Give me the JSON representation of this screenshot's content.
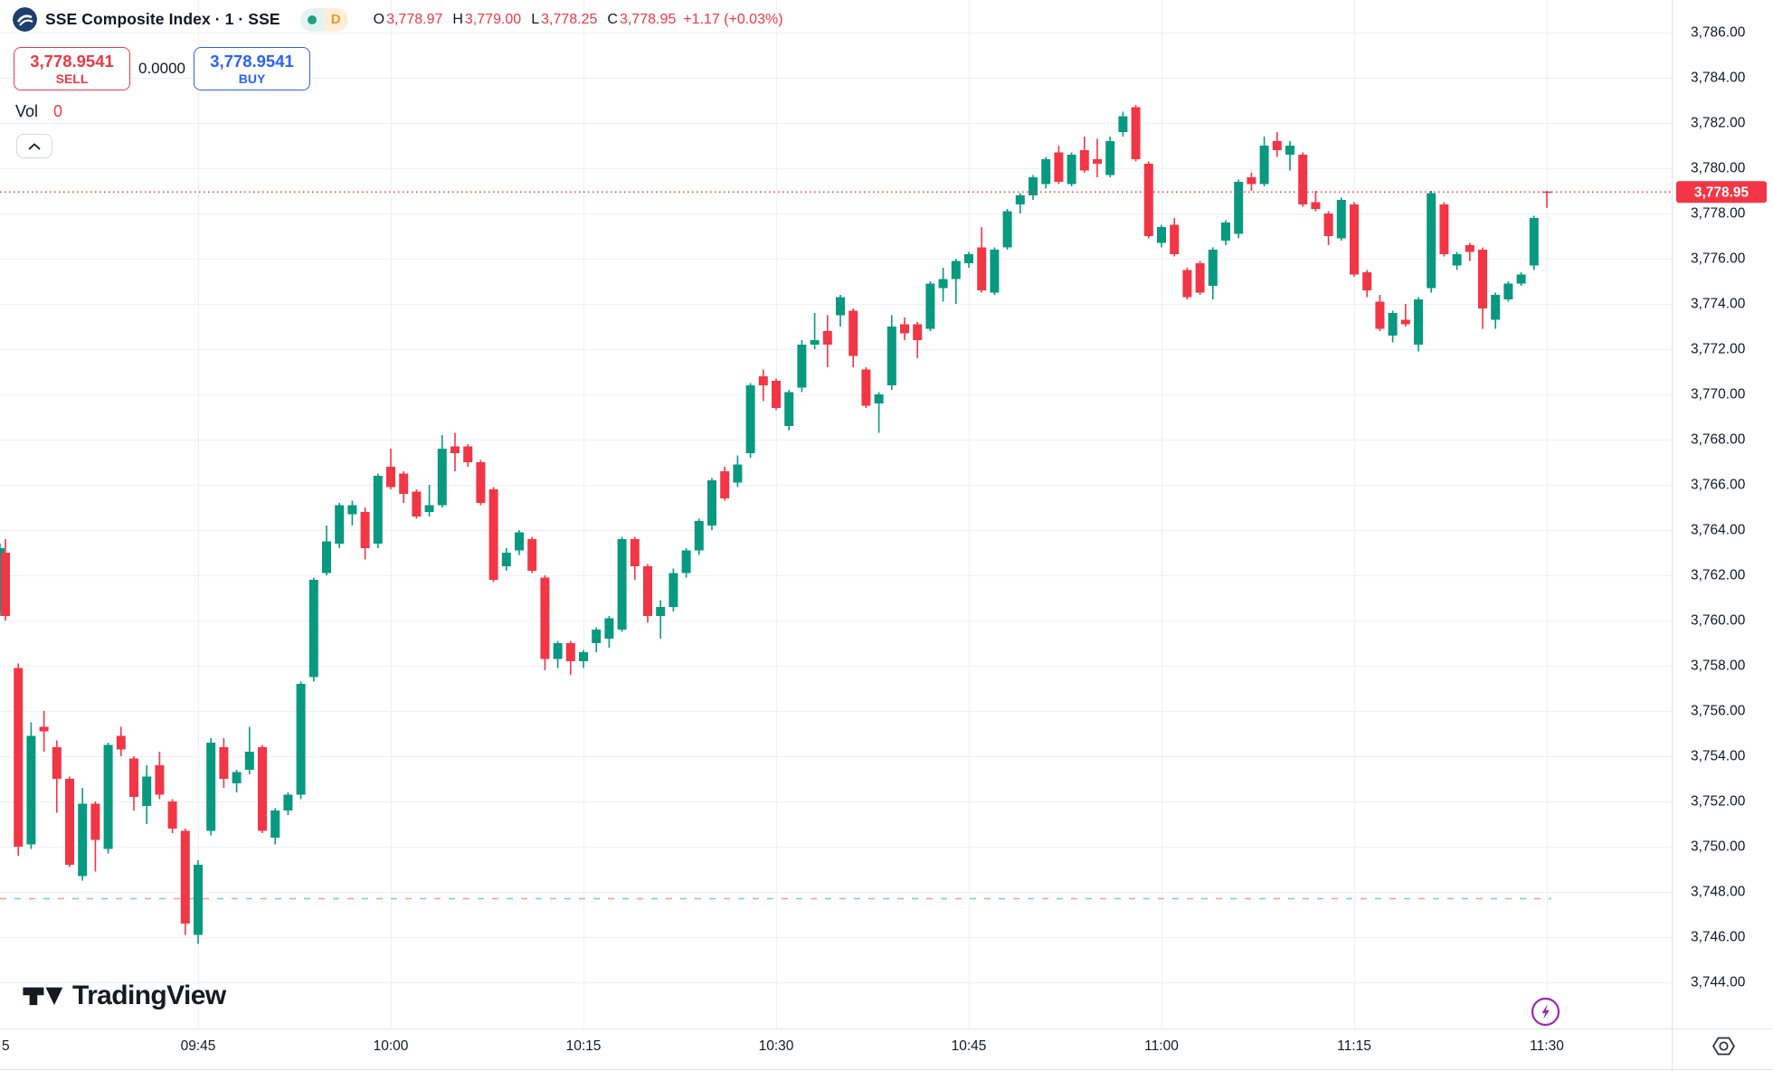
{
  "header": {
    "symbol_title": "SSE Composite Index · 1 · SSE",
    "market_status_dot_color": "#1e9e87",
    "interval_badge": "D",
    "ohlc": {
      "o_label": "O",
      "o_value": "3,778.97",
      "h_label": "H",
      "h_value": "3,779.00",
      "l_label": "L",
      "l_value": "3,778.25",
      "c_label": "C",
      "c_value": "3,778.95",
      "change": "+1.17 (+0.03%)",
      "value_color": "#f23645",
      "label_color": "#131722"
    }
  },
  "trade_panel": {
    "sell_price": "3,778.9541",
    "sell_label": "SELL",
    "spread": "0.0000",
    "buy_price": "3,778.9541",
    "buy_label": "BUY",
    "sell_color": "#f23645",
    "buy_color": "#2962ff"
  },
  "volume": {
    "label": "Vol",
    "value": "0"
  },
  "watermark": {
    "text": "TradingView"
  },
  "chart_data": {
    "type": "candlestick",
    "title": "SSE Composite Index 1-minute",
    "up_color": "#089981",
    "down_color": "#f23645",
    "grid_color": "#eef0f5",
    "axis_text_color": "#131722",
    "last_price": 3778.95,
    "last_price_label": "3,778.95",
    "low_dashed_line_price": 3747.7,
    "price_axis_range": [
      3744,
      3786
    ],
    "price_ticks": [
      {
        "label": "3,786.00",
        "price": 3786
      },
      {
        "label": "3,784.00",
        "price": 3784
      },
      {
        "label": "3,782.00",
        "price": 3782
      },
      {
        "label": "3,780.00",
        "price": 3780
      },
      {
        "label": "3,778.00",
        "price": 3778
      },
      {
        "label": "3,776.00",
        "price": 3776
      },
      {
        "label": "3,774.00",
        "price": 3774
      },
      {
        "label": "3,772.00",
        "price": 3772
      },
      {
        "label": "3,770.00",
        "price": 3770
      },
      {
        "label": "3,768.00",
        "price": 3768
      },
      {
        "label": "3,766.00",
        "price": 3766
      },
      {
        "label": "3,764.00",
        "price": 3764
      },
      {
        "label": "3,762.00",
        "price": 3762
      },
      {
        "label": "3,760.00",
        "price": 3760
      },
      {
        "label": "3,758.00",
        "price": 3758
      },
      {
        "label": "3,756.00",
        "price": 3756
      },
      {
        "label": "3,754.00",
        "price": 3754
      },
      {
        "label": "3,752.00",
        "price": 3752
      },
      {
        "label": "3,750.00",
        "price": 3750
      },
      {
        "label": "3,748.00",
        "price": 3748
      },
      {
        "label": "3,746.00",
        "price": 3746
      },
      {
        "label": "3,744.00",
        "price": 3744
      }
    ],
    "time_ticks": [
      {
        "label": "5",
        "time": "09:30"
      },
      {
        "label": "09:45",
        "time": "09:45"
      },
      {
        "label": "10:00",
        "time": "10:00"
      },
      {
        "label": "10:15",
        "time": "10:15"
      },
      {
        "label": "10:30",
        "time": "10:30"
      },
      {
        "label": "10:45",
        "time": "10:45"
      },
      {
        "label": "11:00",
        "time": "11:00"
      },
      {
        "label": "11:15",
        "time": "11:15"
      },
      {
        "label": "11:30",
        "time": "11:30"
      }
    ],
    "candles": [
      [
        "09:29",
        3760.4,
        3763.4,
        3760.2,
        3763.2
      ],
      [
        "09:30",
        3763.0,
        3763.6,
        3760.0,
        3760.2
      ],
      [
        "09:31",
        3757.9,
        3758.1,
        3749.6,
        3750.0
      ],
      [
        "09:32",
        3750.1,
        3755.5,
        3749.9,
        3754.9
      ],
      [
        "09:33",
        3755.3,
        3756.0,
        3754.2,
        3755.1
      ],
      [
        "09:34",
        3754.4,
        3754.7,
        3751.5,
        3753.0
      ],
      [
        "09:35",
        3753.0,
        3753.1,
        3749.1,
        3749.2
      ],
      [
        "09:36",
        3748.7,
        3752.6,
        3748.5,
        3751.9
      ],
      [
        "09:37",
        3751.9,
        3752.0,
        3748.9,
        3750.3
      ],
      [
        "09:38",
        3749.9,
        3754.6,
        3749.7,
        3754.5
      ],
      [
        "09:39",
        3754.9,
        3755.3,
        3754.0,
        3754.3
      ],
      [
        "09:40",
        3753.9,
        3754.0,
        3751.6,
        3752.2
      ],
      [
        "09:41",
        3751.8,
        3753.6,
        3751.0,
        3753.1
      ],
      [
        "09:42",
        3753.6,
        3754.2,
        3752.1,
        3752.3
      ],
      [
        "09:43",
        3752.0,
        3752.1,
        3750.6,
        3750.8
      ],
      [
        "09:44",
        3750.7,
        3750.8,
        3746.1,
        3746.6
      ],
      [
        "09:45",
        3746.1,
        3749.4,
        3745.7,
        3749.2
      ],
      [
        "09:46",
        3750.7,
        3754.8,
        3750.5,
        3754.6
      ],
      [
        "09:47",
        3754.4,
        3754.8,
        3752.6,
        3753.0
      ],
      [
        "09:48",
        3752.8,
        3753.4,
        3752.4,
        3753.3
      ],
      [
        "09:49",
        3753.4,
        3755.3,
        3753.2,
        3754.2
      ],
      [
        "09:50",
        3754.4,
        3754.5,
        3750.6,
        3750.7
      ],
      [
        "09:51",
        3750.4,
        3751.7,
        3750.1,
        3751.6
      ],
      [
        "09:52",
        3751.6,
        3752.4,
        3751.4,
        3752.3
      ],
      [
        "09:53",
        3752.3,
        3757.3,
        3752.1,
        3757.2
      ],
      [
        "09:54",
        3757.5,
        3761.9,
        3757.3,
        3761.8
      ],
      [
        "09:55",
        3762.1,
        3764.2,
        3762.0,
        3763.5
      ],
      [
        "09:56",
        3763.4,
        3765.2,
        3763.2,
        3765.1
      ],
      [
        "09:57",
        3764.7,
        3765.3,
        3764.2,
        3765.1
      ],
      [
        "09:58",
        3764.8,
        3765.0,
        3762.7,
        3763.2
      ],
      [
        "09:59",
        3763.4,
        3766.5,
        3763.2,
        3766.4
      ],
      [
        "10:00",
        3766.8,
        3767.6,
        3765.8,
        3765.9
      ],
      [
        "10:01",
        3766.5,
        3766.6,
        3765.2,
        3765.6
      ],
      [
        "10:02",
        3765.7,
        3765.8,
        3764.5,
        3764.6
      ],
      [
        "10:03",
        3764.8,
        3766.0,
        3764.6,
        3765.1
      ],
      [
        "10:04",
        3765.1,
        3768.2,
        3765.0,
        3767.6
      ],
      [
        "10:05",
        3767.7,
        3768.3,
        3766.6,
        3767.4
      ],
      [
        "10:06",
        3767.7,
        3767.8,
        3766.8,
        3767.0
      ],
      [
        "10:07",
        3767.0,
        3767.1,
        3765.1,
        3765.2
      ],
      [
        "10:08",
        3765.8,
        3765.9,
        3761.7,
        3761.8
      ],
      [
        "10:09",
        3762.4,
        3763.2,
        3762.2,
        3763.0
      ],
      [
        "10:10",
        3763.1,
        3764.0,
        3762.9,
        3763.9
      ],
      [
        "10:11",
        3763.6,
        3763.7,
        3762.1,
        3762.2
      ],
      [
        "10:12",
        3761.9,
        3762.0,
        3757.8,
        3758.3
      ],
      [
        "10:13",
        3758.3,
        3759.1,
        3757.9,
        3759.0
      ],
      [
        "10:14",
        3759.0,
        3759.1,
        3757.6,
        3758.2
      ],
      [
        "10:15",
        3758.2,
        3758.7,
        3757.9,
        3758.6
      ],
      [
        "10:16",
        3759.0,
        3759.7,
        3758.6,
        3759.6
      ],
      [
        "10:17",
        3759.2,
        3760.2,
        3758.8,
        3760.1
      ],
      [
        "10:18",
        3759.6,
        3763.7,
        3759.5,
        3763.6
      ],
      [
        "10:19",
        3763.6,
        3763.7,
        3761.8,
        3762.4
      ],
      [
        "10:20",
        3762.4,
        3762.5,
        3759.9,
        3760.2
      ],
      [
        "10:21",
        3760.2,
        3760.9,
        3759.2,
        3760.6
      ],
      [
        "10:22",
        3760.6,
        3762.3,
        3760.4,
        3762.1
      ],
      [
        "10:23",
        3762.1,
        3763.2,
        3761.9,
        3763.1
      ],
      [
        "10:24",
        3763.1,
        3764.5,
        3762.9,
        3764.4
      ],
      [
        "10:25",
        3764.2,
        3766.3,
        3764.0,
        3766.2
      ],
      [
        "10:26",
        3766.6,
        3766.8,
        3765.3,
        3765.4
      ],
      [
        "10:27",
        3766.1,
        3767.3,
        3765.9,
        3766.9
      ],
      [
        "10:28",
        3767.4,
        3770.5,
        3767.2,
        3770.4
      ],
      [
        "10:29",
        3770.8,
        3771.1,
        3769.7,
        3770.4
      ],
      [
        "10:30",
        3770.6,
        3770.7,
        3769.3,
        3769.4
      ],
      [
        "10:31",
        3768.6,
        3770.2,
        3768.4,
        3770.1
      ],
      [
        "10:32",
        3770.3,
        3772.4,
        3770.1,
        3772.2
      ],
      [
        "10:33",
        3772.2,
        3773.6,
        3772.0,
        3772.4
      ],
      [
        "10:34",
        3772.8,
        3773.5,
        3771.2,
        3772.2
      ],
      [
        "10:35",
        3773.5,
        3774.4,
        3773.0,
        3774.3
      ],
      [
        "10:36",
        3773.7,
        3773.8,
        3771.2,
        3771.7
      ],
      [
        "10:37",
        3771.1,
        3771.2,
        3769.4,
        3769.5
      ],
      [
        "10:38",
        3769.6,
        3770.1,
        3768.3,
        3770.0
      ],
      [
        "10:39",
        3770.4,
        3773.5,
        3770.2,
        3773.0
      ],
      [
        "10:40",
        3773.1,
        3773.4,
        3772.4,
        3772.7
      ],
      [
        "10:41",
        3773.1,
        3773.2,
        3771.6,
        3772.4
      ],
      [
        "10:42",
        3772.9,
        3775.0,
        3772.8,
        3774.9
      ],
      [
        "10:43",
        3774.7,
        3775.6,
        3774.1,
        3775.1
      ],
      [
        "10:44",
        3775.1,
        3776.0,
        3774.0,
        3775.9
      ],
      [
        "10:45",
        3775.8,
        3776.3,
        3775.6,
        3776.2
      ],
      [
        "10:46",
        3776.5,
        3777.4,
        3774.5,
        3774.6
      ],
      [
        "10:47",
        3774.5,
        3776.5,
        3774.4,
        3776.4
      ],
      [
        "10:48",
        3776.5,
        3778.2,
        3776.4,
        3778.1
      ],
      [
        "10:49",
        3778.4,
        3778.9,
        3778.0,
        3778.8
      ],
      [
        "10:50",
        3778.8,
        3779.7,
        3778.6,
        3779.6
      ],
      [
        "10:51",
        3779.3,
        3780.5,
        3779.1,
        3780.4
      ],
      [
        "10:52",
        3780.7,
        3781.0,
        3779.3,
        3779.4
      ],
      [
        "10:53",
        3779.3,
        3780.7,
        3779.2,
        3780.6
      ],
      [
        "10:54",
        3780.8,
        3781.4,
        3779.8,
        3779.9
      ],
      [
        "10:55",
        3780.4,
        3781.3,
        3779.6,
        3780.2
      ],
      [
        "10:56",
        3779.7,
        3781.4,
        3779.6,
        3781.2
      ],
      [
        "10:57",
        3781.6,
        3782.5,
        3781.4,
        3782.3
      ],
      [
        "10:58",
        3782.7,
        3782.8,
        3780.3,
        3780.4
      ],
      [
        "10:59",
        3780.2,
        3780.3,
        3776.9,
        3777.0
      ],
      [
        "11:00",
        3776.7,
        3777.5,
        3776.5,
        3777.4
      ],
      [
        "11:01",
        3777.5,
        3777.8,
        3776.1,
        3776.2
      ],
      [
        "11:02",
        3775.5,
        3775.6,
        3774.2,
        3774.3
      ],
      [
        "11:03",
        3775.8,
        3775.9,
        3774.4,
        3774.5
      ],
      [
        "11:04",
        3774.8,
        3776.5,
        3774.2,
        3776.4
      ],
      [
        "11:05",
        3776.8,
        3777.7,
        3776.6,
        3777.6
      ],
      [
        "11:06",
        3777.1,
        3779.5,
        3776.9,
        3779.4
      ],
      [
        "11:07",
        3779.6,
        3779.8,
        3779.0,
        3779.3
      ],
      [
        "11:08",
        3779.3,
        3781.4,
        3779.2,
        3781.0
      ],
      [
        "11:09",
        3781.2,
        3781.6,
        3780.5,
        3780.8
      ],
      [
        "11:10",
        3780.6,
        3781.2,
        3779.9,
        3781.0
      ],
      [
        "11:11",
        3780.6,
        3780.7,
        3778.3,
        3778.4
      ],
      [
        "11:12",
        3778.5,
        3779.0,
        3778.1,
        3778.2
      ],
      [
        "11:13",
        3778.0,
        3778.1,
        3776.6,
        3777.0
      ],
      [
        "11:14",
        3776.9,
        3778.7,
        3776.8,
        3778.6
      ],
      [
        "11:15",
        3778.4,
        3778.5,
        3775.2,
        3775.3
      ],
      [
        "11:16",
        3775.4,
        3775.5,
        3774.3,
        3774.6
      ],
      [
        "11:17",
        3774.1,
        3774.4,
        3772.8,
        3772.9
      ],
      [
        "11:18",
        3772.6,
        3773.7,
        3772.3,
        3773.6
      ],
      [
        "11:19",
        3773.3,
        3774.0,
        3773.0,
        3773.1
      ],
      [
        "11:20",
        3772.2,
        3774.3,
        3771.9,
        3774.2
      ],
      [
        "11:21",
        3774.7,
        3779.0,
        3774.5,
        3778.9
      ],
      [
        "11:22",
        3778.4,
        3778.5,
        3776.1,
        3776.2
      ],
      [
        "11:23",
        3775.7,
        3776.3,
        3775.5,
        3776.2
      ],
      [
        "11:24",
        3776.6,
        3776.7,
        3775.9,
        3776.3
      ],
      [
        "11:25",
        3776.4,
        3776.5,
        3772.9,
        3773.8
      ],
      [
        "11:26",
        3773.3,
        3774.5,
        3772.9,
        3774.4
      ],
      [
        "11:27",
        3774.2,
        3775.0,
        3774.1,
        3774.9
      ],
      [
        "11:28",
        3774.9,
        3775.4,
        3774.8,
        3775.3
      ],
      [
        "11:29",
        3775.7,
        3777.9,
        3775.5,
        3777.8
      ],
      [
        "11:30",
        3778.97,
        3779.0,
        3778.25,
        3778.95
      ]
    ]
  }
}
